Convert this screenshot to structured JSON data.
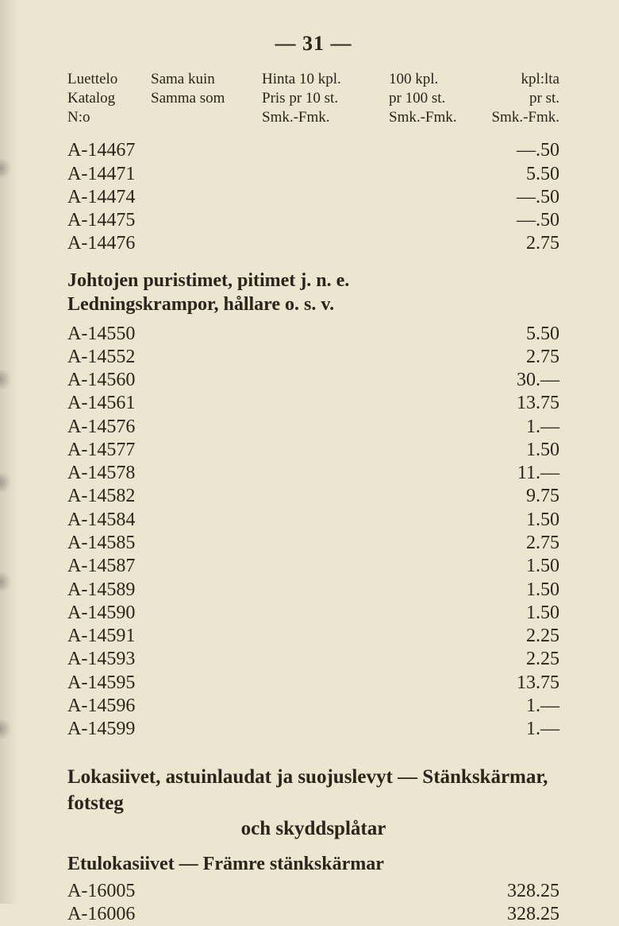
{
  "page_number": "— 31 —",
  "headers": {
    "c1": "Luettelo\nKatalog\nN:o",
    "c2": "Sama kuin\nSamma som",
    "c3": "Hinta 10 kpl.\nPris pr 10 st.\nSmk.-Fmk.",
    "c4": "100 kpl.\npr 100 st.\nSmk.-Fmk.",
    "c5": "kpl:lta\npr st.\nSmk.-Fmk."
  },
  "rows1": [
    {
      "part": "A-14467",
      "price": "—.50"
    },
    {
      "part": "A-14471",
      "price": "5.50"
    },
    {
      "part": "A-14474",
      "price": "—.50"
    },
    {
      "part": "A-14475",
      "price": "—.50"
    },
    {
      "part": "A-14476",
      "price": "2.75"
    }
  ],
  "section1_line1": "Johtojen puristimet, pitimet j. n. e.",
  "section1_line2": "Ledningskrampor, hållare o. s. v.",
  "rows2": [
    {
      "part": "A-14550",
      "price": "5.50"
    },
    {
      "part": "A-14552",
      "price": "2.75"
    },
    {
      "part": "A-14560",
      "price": "30.—"
    },
    {
      "part": "A-14561",
      "price": "13.75"
    },
    {
      "part": "A-14576",
      "price": "1.—"
    },
    {
      "part": "A-14577",
      "price": "1.50"
    },
    {
      "part": "A-14578",
      "price": "11.—"
    },
    {
      "part": "A-14582",
      "price": "9.75"
    },
    {
      "part": "A-14584",
      "price": "1.50"
    },
    {
      "part": "A-14585",
      "price": "2.75"
    },
    {
      "part": "A-14587",
      "price": "1.50"
    },
    {
      "part": "A-14589",
      "price": "1.50"
    },
    {
      "part": "A-14590",
      "price": "1.50"
    },
    {
      "part": "A-14591",
      "price": "2.25"
    },
    {
      "part": "A-14593",
      "price": "2.25"
    },
    {
      "part": "A-14595",
      "price": "13.75"
    },
    {
      "part": "A-14596",
      "price": "1.—"
    },
    {
      "part": "A-14599",
      "price": "1.—"
    }
  ],
  "big_heading_l1": "Lokasiivet, astuinlaudat ja suojuslevyt — Stänkskärmar, fotsteg",
  "big_heading_l2": "och skyddsplåtar",
  "sub_heading": "Etulokasiivet — Främre stänkskärmar",
  "rows3": [
    {
      "part": "A-16005",
      "price": "328.25"
    },
    {
      "part": "A-16006",
      "price": "328.25"
    }
  ]
}
